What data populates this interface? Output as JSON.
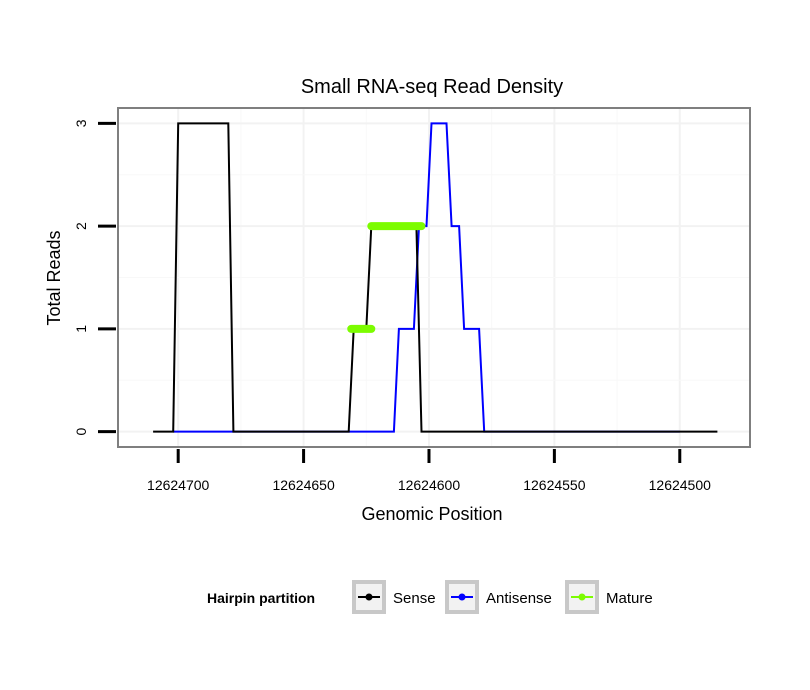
{
  "chart_data": {
    "type": "line",
    "title": "Small RNA-seq Read Density",
    "xlabel": "Genomic Position",
    "ylabel": "Total Reads",
    "x_reversed": true,
    "xlim": [
      12624724,
      12624472
    ],
    "ylim": [
      -0.15,
      3.15
    ],
    "x_ticks": [
      12624700,
      12624650,
      12624600,
      12624550,
      12624500
    ],
    "x_tick_labels": [
      "12624700",
      "12624650",
      "12624600",
      "12624550",
      "12624500"
    ],
    "y_ticks": [
      0,
      1,
      2,
      3
    ],
    "y_tick_labels": [
      "0",
      "1",
      "2",
      "3"
    ],
    "grid": true,
    "legend": {
      "title": "Hairpin partition",
      "position": "bottom",
      "entries": [
        "Sense",
        "Antisense",
        "Mature"
      ]
    },
    "series": [
      {
        "name": "Sense",
        "color": "#000000",
        "x": [
          12624710,
          12624702,
          12624700,
          12624680,
          12624678,
          12624667,
          12624645,
          12624632,
          12624630,
          12624625,
          12624623,
          12624605,
          12624603,
          12624600,
          12624580,
          12624560,
          12624540,
          12624510,
          12624485
        ],
        "y": [
          0,
          0,
          3,
          3,
          0,
          0,
          0,
          0,
          1,
          1,
          2,
          2,
          0,
          0,
          0,
          0,
          0,
          0,
          0
        ]
      },
      {
        "name": "Antisense",
        "color": "#0000ff",
        "x": [
          12624702,
          12624680,
          12624650,
          12624614,
          12624612,
          12624606,
          12624604,
          12624601,
          12624599,
          12624593,
          12624591,
          12624588,
          12624586,
          12624580,
          12624578,
          12624560,
          12624540,
          12624520,
          12624500
        ],
        "y": [
          0,
          0,
          0,
          0,
          1,
          1,
          2,
          2,
          3,
          3,
          2,
          2,
          1,
          1,
          0,
          0,
          0,
          0,
          0
        ]
      },
      {
        "name": "Mature",
        "color": "#7cfc00",
        "segments": [
          {
            "x": [
              12624631,
              12624623
            ],
            "y": [
              1,
              1
            ]
          },
          {
            "x": [
              12624623,
              12624603
            ],
            "y": [
              2,
              2
            ]
          }
        ]
      }
    ]
  }
}
